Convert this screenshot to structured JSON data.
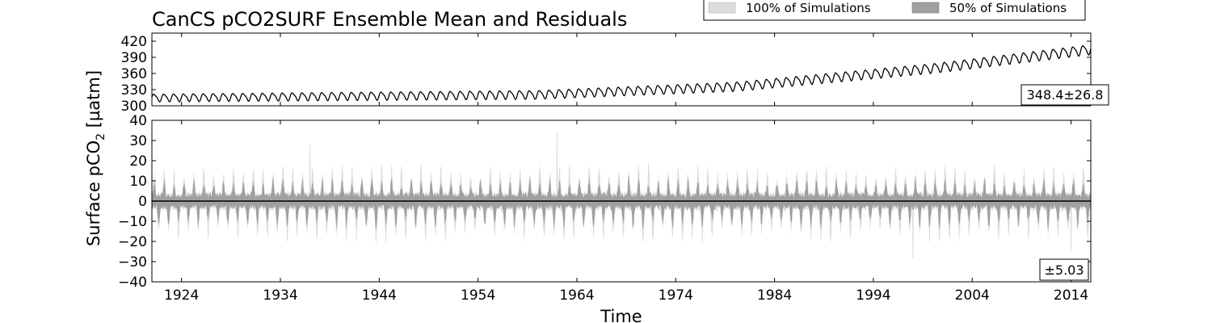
{
  "chart_data": {
    "type": "area",
    "title": "CanCS pCO2SURF Ensemble Mean and Residuals",
    "xlabel": "Time",
    "ylabel_main": "Surface pCO",
    "ylabel_sub": "2",
    "ylabel_unit": " [µatm]",
    "xlim": [
      1921,
      2016
    ],
    "x_ticks": [
      1924,
      1934,
      1944,
      1954,
      1964,
      1974,
      1984,
      1994,
      2004,
      2014
    ],
    "legend": {
      "position": "top-right",
      "entries": [
        {
          "label": "100% of Simulations",
          "color": "#dcdcdc"
        },
        {
          "label": "50% of Simulations",
          "color": "#a0a0a0"
        }
      ]
    },
    "panels": [
      {
        "name": "ensemble-mean",
        "ylim": [
          300,
          435
        ],
        "y_ticks": [
          300,
          330,
          360,
          390,
          420
        ],
        "annotation": "348.4±26.8",
        "series": {
          "name": "ensemble mean",
          "color": "#000000",
          "baseline": [
            {
              "t": 1921,
              "v": 315
            },
            {
              "t": 1960,
              "v": 321
            },
            {
              "t": 1980,
              "v": 336
            },
            {
              "t": 2000,
              "v": 370
            },
            {
              "t": 2016,
              "v": 405
            }
          ],
          "seasonal_amplitude": [
            {
              "t": 1921,
              "v": 13
            },
            {
              "t": 2016,
              "v": 17
            }
          ]
        }
      },
      {
        "name": "residuals",
        "ylim": [
          -40,
          40
        ],
        "y_ticks": [
          -40,
          -30,
          -20,
          -10,
          0,
          10,
          20,
          30,
          40
        ],
        "annotation": "±5.03",
        "zero_line": 0,
        "series": [
          {
            "name": "100% of Simulations",
            "color": "#dcdcdc",
            "typical_max": 16,
            "typical_min": -18,
            "notable_peaks": [
              {
                "t": 1962,
                "v": 34
              },
              {
                "t": 1937,
                "v": 28
              },
              {
                "t": 1998,
                "v": -28
              },
              {
                "t": 2014,
                "v": -25
              }
            ]
          },
          {
            "name": "50% of Simulations",
            "color": "#a0a0a0",
            "typical_max": 10,
            "typical_min": -12
          }
        ]
      }
    ]
  }
}
